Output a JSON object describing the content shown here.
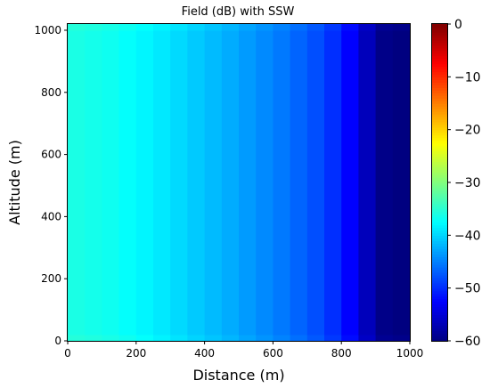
{
  "chart_data": {
    "type": "heatmap",
    "title": "Field (dB) with SSW",
    "xlabel": "Distance (m)",
    "ylabel": "Altitude (m)",
    "xlim": [
      0,
      1000
    ],
    "ylim": [
      0,
      1020
    ],
    "xticks": [
      0,
      200,
      400,
      600,
      800,
      1000
    ],
    "yticks": [
      0,
      200,
      400,
      600,
      800,
      1000
    ],
    "colorbar": {
      "colormap": "jet",
      "range": [
        -60,
        0
      ],
      "ticks": [
        0,
        -10,
        -20,
        -30,
        -40,
        -50,
        -60
      ],
      "tick_labels": [
        "0",
        "−10",
        "−20",
        "−30",
        "−40",
        "−50",
        "−60"
      ]
    },
    "columns_x": [
      0,
      50,
      100,
      150,
      200,
      250,
      300,
      350,
      400,
      450,
      500,
      550,
      600,
      650,
      700,
      750,
      800,
      850,
      900,
      950
    ],
    "column_width": 50,
    "field_db": [
      -36.0,
      -36.3,
      -36.7,
      -37.3,
      -38.0,
      -38.8,
      -39.7,
      -40.6,
      -41.5,
      -42.4,
      -43.4,
      -44.4,
      -45.4,
      -46.6,
      -47.9,
      -49.8,
      -52.5,
      -56.5,
      -59.5,
      -60.0
    ],
    "row_boundaries": [
      0,
      20,
      1000,
      1020
    ],
    "edge_rows_offset_db": [
      0.6,
      0,
      0.6
    ]
  }
}
